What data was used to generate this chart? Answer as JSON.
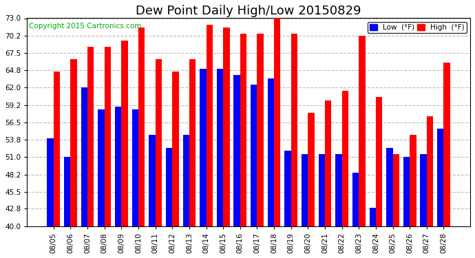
{
  "title": "Dew Point Daily High/Low 20150829",
  "copyright": "Copyright 2015 Cartronics.com",
  "ylim": [
    40.0,
    73.0
  ],
  "yticks": [
    40.0,
    42.8,
    45.5,
    48.2,
    51.0,
    53.8,
    56.5,
    59.2,
    62.0,
    64.8,
    67.5,
    70.2,
    73.0
  ],
  "dates": [
    "08/05",
    "08/06",
    "08/07",
    "08/08",
    "08/09",
    "08/10",
    "08/11",
    "08/12",
    "08/13",
    "08/14",
    "08/15",
    "08/16",
    "08/17",
    "08/18",
    "08/19",
    "08/20",
    "08/21",
    "08/22",
    "08/23",
    "08/24",
    "08/25",
    "08/26",
    "08/27",
    "08/28"
  ],
  "low_values": [
    54.0,
    51.0,
    62.0,
    58.5,
    59.0,
    58.5,
    54.5,
    52.5,
    54.5,
    65.0,
    65.0,
    64.0,
    62.5,
    63.5,
    52.0,
    51.5,
    51.5,
    51.5,
    48.5,
    43.0,
    52.5,
    51.0,
    51.5,
    55.5
  ],
  "high_values": [
    64.5,
    66.5,
    68.5,
    68.5,
    69.5,
    71.5,
    66.5,
    64.5,
    66.5,
    72.0,
    71.5,
    70.5,
    70.5,
    73.0,
    70.5,
    58.0,
    60.0,
    61.5,
    70.2,
    60.5,
    51.5,
    54.5,
    57.5,
    66.0
  ],
  "low_color": "#0000ff",
  "high_color": "#ff0000",
  "background_color": "#ffffff",
  "grid_color": "#bbbbbb",
  "bar_width": 0.38,
  "legend_low_label": "Low  (°F)",
  "legend_high_label": "High  (°F)",
  "title_fontsize": 13,
  "tick_fontsize": 7.5,
  "copyright_fontsize": 7.5
}
